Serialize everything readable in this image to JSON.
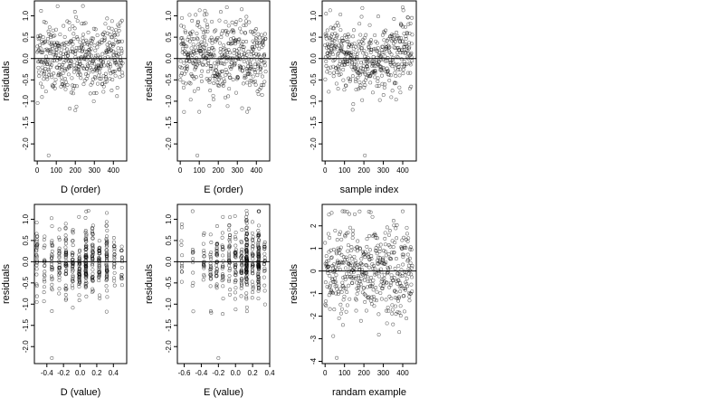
{
  "chart_data": [
    {
      "type": "scatter",
      "xlabel": "D (order)",
      "ylabel": "residuals",
      "xlim": [
        -15,
        470
      ],
      "ylim": [
        -2.4,
        1.35
      ],
      "xticks": [
        0,
        100,
        200,
        300,
        400
      ],
      "yticks": [
        -2.0,
        -1.5,
        -1.0,
        -0.5,
        0.0,
        0.5,
        1.0
      ],
      "ytick_labels": [
        "-2.0",
        "-1.5",
        "-1.0",
        "-0.5",
        "0.0",
        "0.5",
        "1.0"
      ],
      "reference_line_y": 0,
      "x_mode": "index",
      "n_points": 450,
      "center": 0.02,
      "spread": 0.42,
      "min_y": -1.27,
      "max_y": 1.23,
      "outliers": [
        {
          "x": 60,
          "y": -2.27
        },
        {
          "x": 200,
          "y": -1.21
        },
        {
          "x": 240,
          "y": 1.23
        }
      ]
    },
    {
      "type": "scatter",
      "xlabel": "E (order)",
      "ylabel": "residuals",
      "xlim": [
        -15,
        470
      ],
      "ylim": [
        -2.4,
        1.35
      ],
      "xticks": [
        0,
        100,
        200,
        300,
        400
      ],
      "yticks": [
        -2.0,
        -1.5,
        -1.0,
        -0.5,
        0.0,
        0.5,
        1.0
      ],
      "ytick_labels": [
        "-2.0",
        "-1.5",
        "-1.0",
        "-0.5",
        "0.0",
        "0.5",
        "1.0"
      ],
      "reference_line_y": 0,
      "x_mode": "index",
      "n_points": 450,
      "center": 0.0,
      "spread": 0.45,
      "min_y": -1.25,
      "max_y": 1.23,
      "outliers": [
        {
          "x": 90,
          "y": -2.27
        },
        {
          "x": 20,
          "y": -1.25
        },
        {
          "x": 245,
          "y": 1.2
        }
      ]
    },
    {
      "type": "scatter",
      "xlabel": "sample index",
      "ylabel": "residuals",
      "xlim": [
        -15,
        470
      ],
      "ylim": [
        -2.4,
        1.35
      ],
      "xticks": [
        0,
        100,
        200,
        300,
        400
      ],
      "yticks": [
        -2.0,
        -1.5,
        -1.0,
        -0.5,
        0.0,
        0.5,
        1.0
      ],
      "ytick_labels": [
        "-2.0",
        "-1.5",
        "-1.0",
        "-0.5",
        "0.0",
        "0.5",
        "1.0"
      ],
      "reference_line_y": 0,
      "x_mode": "index_trend",
      "n_points": 450,
      "center": 0.0,
      "spread": 0.42,
      "min_y": -1.25,
      "max_y": 1.2,
      "outliers": [
        {
          "x": 205,
          "y": -2.27
        },
        {
          "x": 5,
          "y": 1.05
        },
        {
          "x": 400,
          "y": 1.2
        }
      ]
    },
    {
      "type": "scatter",
      "xlabel": "D (value)",
      "ylabel": "residuals",
      "xlim": [
        -0.55,
        0.56
      ],
      "ylim": [
        -2.4,
        1.35
      ],
      "xticks": [
        -0.4,
        -0.2,
        0.0,
        0.2,
        0.4
      ],
      "xtick_labels": [
        "-0.4",
        "-0.2",
        "0.0",
        "0.2",
        "0.4"
      ],
      "yticks": [
        -2.0,
        -1.5,
        -1.0,
        -0.5,
        0.0,
        0.5,
        1.0
      ],
      "ytick_labels": [
        "-2.0",
        "-1.5",
        "-1.0",
        "-0.5",
        "0.0",
        "0.5",
        "1.0"
      ],
      "reference_line_y": 0,
      "x_mode": "levels",
      "x_levels": [
        -0.52,
        -0.43,
        -0.34,
        -0.25,
        -0.17,
        -0.09,
        -0.01,
        0.07,
        0.15,
        0.23,
        0.32,
        0.41,
        0.5
      ],
      "level_weights": [
        3,
        3,
        3,
        3,
        5,
        6,
        7,
        9,
        7,
        7,
        5,
        3,
        3
      ],
      "n_points": 450,
      "center": 0.02,
      "spread": 0.42,
      "min_y": -1.25,
      "max_y": 1.23,
      "outliers": [
        {
          "x": -0.34,
          "y": -2.27
        },
        {
          "x": 0.1,
          "y": 1.2
        }
      ]
    },
    {
      "type": "scatter",
      "xlabel": "E (value)",
      "ylabel": "residuals",
      "xlim": [
        -0.68,
        0.4
      ],
      "ylim": [
        -2.4,
        1.35
      ],
      "xticks": [
        -0.6,
        -0.4,
        -0.2,
        0.0,
        0.2,
        0.4
      ],
      "xtick_labels": [
        "-0.6",
        "-0.4",
        "-0.2",
        "0.0",
        "0.2",
        "0.4"
      ],
      "yticks": [
        -2.0,
        -1.5,
        -1.0,
        -0.5,
        0.0,
        0.5,
        1.0
      ],
      "ytick_labels": [
        "-2.0",
        "-1.5",
        "-1.0",
        "-0.5",
        "0.0",
        "0.5",
        "1.0"
      ],
      "reference_line_y": 0,
      "x_mode": "levels",
      "x_levels": [
        -0.63,
        -0.5,
        -0.37,
        -0.29,
        -0.22,
        -0.15,
        -0.07,
        0.0,
        0.07,
        0.13,
        0.2,
        0.27,
        0.34
      ],
      "level_weights": [
        3,
        2,
        2,
        3,
        4,
        5,
        5,
        5,
        4,
        14,
        4,
        11,
        3
      ],
      "n_points": 450,
      "center": 0.0,
      "spread": 0.45,
      "min_y": -1.25,
      "max_y": 1.2,
      "outliers": [
        {
          "x": -0.2,
          "y": -2.27
        },
        {
          "x": 0.13,
          "y": 1.2
        }
      ]
    },
    {
      "type": "scatter",
      "xlabel": "randam example",
      "ylabel": "residuals",
      "xlim": [
        -15,
        470
      ],
      "ylim": [
        -4.1,
        2.95
      ],
      "xticks": [
        0,
        100,
        200,
        300,
        400
      ],
      "yticks": [
        -4,
        -3,
        -2,
        -1,
        0,
        1,
        2
      ],
      "ytick_labels": [
        "-4",
        "-3",
        "-2",
        "-1",
        "0",
        "1",
        "2"
      ],
      "reference_line_y": 0,
      "x_mode": "index",
      "n_points": 450,
      "center": 0.0,
      "spread": 1.0,
      "min_y": -2.9,
      "max_y": 2.65,
      "outliers": [
        {
          "x": 60,
          "y": -3.85
        },
        {
          "x": 20,
          "y": 2.5
        },
        {
          "x": 90,
          "y": 2.65
        }
      ]
    }
  ]
}
